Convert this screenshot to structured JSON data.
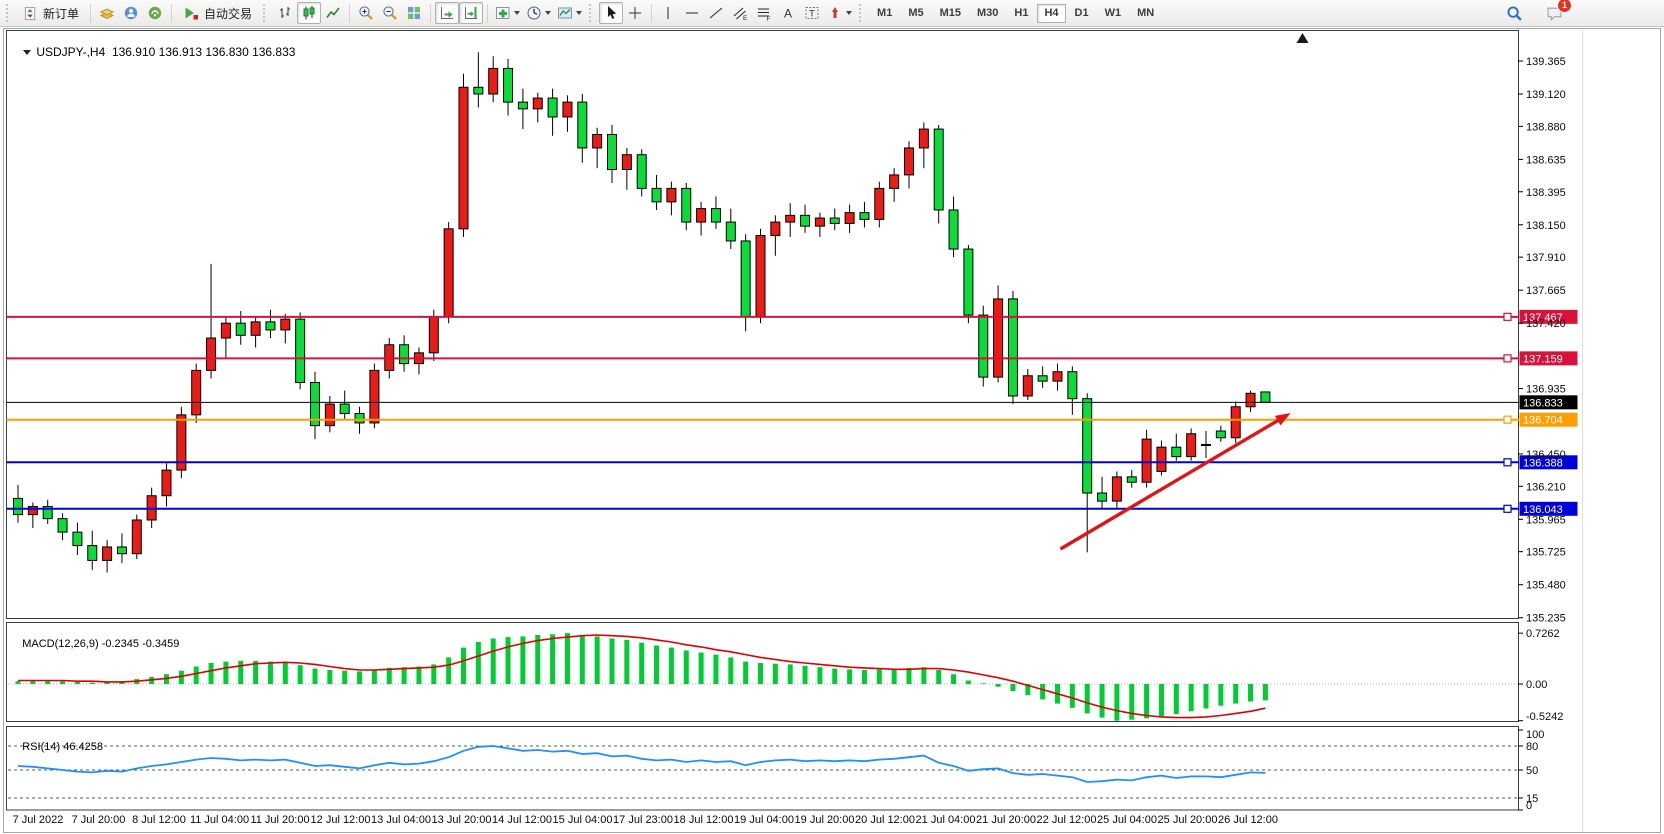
{
  "toolbar": {
    "new_order_label": "新订单",
    "auto_trading_label": "自动交易",
    "timeframes": [
      "M1",
      "M5",
      "M15",
      "M30",
      "H1",
      "H4",
      "D1",
      "W1",
      "MN"
    ],
    "active_timeframe": "H4",
    "notification_count": "1",
    "icons": [
      "new-order",
      "market-watch",
      "community",
      "news",
      "auto-trading",
      "bar-chart",
      "candlestick-chart",
      "line-chart",
      "zoom-in",
      "zoom-out",
      "tile-windows",
      "auto-scroll",
      "chart-shift",
      "indicators",
      "periods",
      "templates",
      "cursor",
      "crosshair",
      "vertical-line",
      "horizontal-line",
      "trendline",
      "equidistant-channel",
      "fibonacci",
      "text",
      "text-label",
      "arrows",
      "search",
      "chat"
    ]
  },
  "chart": {
    "symbol_label": "USDJPY-,H4",
    "ohlc_label": "136.910 136.913 136.830 136.833"
  },
  "indicators": {
    "macd": {
      "label": "MACD(12,26,9)",
      "values": "-0.2345 -0.3459",
      "axis_labels": [
        "0.7262",
        "0.00",
        "-0.5242"
      ]
    },
    "rsi": {
      "label": "RSI(14)",
      "value": "46.4258",
      "axis_labels": [
        "100",
        "80",
        "50",
        "15",
        "0"
      ],
      "levels": [
        80,
        50,
        15
      ]
    }
  },
  "chart_data": {
    "type": "candlestick",
    "symbol": "USDJPY-",
    "timeframe": "H4",
    "ylim": [
      135.235,
      139.365
    ],
    "price_ticks": [
      "139.365",
      "139.120",
      "138.880",
      "138.635",
      "138.395",
      "138.150",
      "137.910",
      "137.665",
      "137.420",
      "136.935",
      "136.450",
      "136.210",
      "135.965",
      "135.725",
      "135.480",
      "135.235"
    ],
    "hlines": [
      {
        "price": 137.467,
        "color": "#d9123b",
        "width": 2,
        "kind": "resistance"
      },
      {
        "price": 137.159,
        "color": "#d9123b",
        "width": 2,
        "kind": "resistance"
      },
      {
        "price": 136.833,
        "color": "#000000",
        "width": 1,
        "kind": "current-price"
      },
      {
        "price": 136.704,
        "color": "#ff9e00",
        "width": 2,
        "kind": "pivot"
      },
      {
        "price": 136.388,
        "color": "#0000dd",
        "width": 2,
        "kind": "support"
      },
      {
        "price": 136.043,
        "color": "#0000dd",
        "width": 2,
        "kind": "support"
      }
    ],
    "up_color": "#ea1c17",
    "down_color": "#0cdb3a",
    "candles": [
      [
        136.12,
        136.22,
        135.94,
        136.0
      ],
      [
        136.0,
        136.09,
        135.9,
        136.06
      ],
      [
        136.06,
        136.11,
        135.93,
        135.97
      ],
      [
        135.97,
        136.01,
        135.81,
        135.87
      ],
      [
        135.87,
        135.94,
        135.7,
        135.77
      ],
      [
        135.77,
        135.88,
        135.59,
        135.66
      ],
      [
        135.66,
        135.81,
        135.57,
        135.76
      ],
      [
        135.76,
        135.86,
        135.64,
        135.71
      ],
      [
        135.71,
        136.0,
        135.67,
        135.96
      ],
      [
        135.96,
        136.2,
        135.9,
        136.14
      ],
      [
        136.14,
        136.38,
        136.06,
        136.33
      ],
      [
        136.33,
        136.8,
        136.27,
        136.74
      ],
      [
        136.74,
        137.12,
        136.68,
        137.07
      ],
      [
        137.07,
        137.86,
        137.01,
        137.31
      ],
      [
        137.31,
        137.47,
        137.16,
        137.42
      ],
      [
        137.42,
        137.51,
        137.26,
        137.33
      ],
      [
        137.33,
        137.46,
        137.24,
        137.43
      ],
      [
        137.43,
        137.52,
        137.31,
        137.37
      ],
      [
        137.37,
        137.49,
        137.27,
        137.45
      ],
      [
        137.45,
        137.5,
        136.93,
        136.98
      ],
      [
        136.98,
        137.06,
        136.56,
        136.66
      ],
      [
        136.66,
        136.88,
        136.61,
        136.82
      ],
      [
        136.82,
        136.92,
        136.7,
        136.75
      ],
      [
        136.75,
        136.8,
        136.6,
        136.68
      ],
      [
        136.68,
        137.12,
        136.64,
        137.07
      ],
      [
        137.07,
        137.31,
        137.01,
        137.26
      ],
      [
        137.26,
        137.33,
        137.06,
        137.12
      ],
      [
        137.12,
        137.24,
        137.04,
        137.2
      ],
      [
        137.2,
        137.52,
        137.14,
        137.47
      ],
      [
        137.47,
        138.17,
        137.42,
        138.12
      ],
      [
        138.12,
        139.27,
        138.06,
        139.17
      ],
      [
        139.17,
        139.43,
        139.02,
        139.12
      ],
      [
        139.12,
        139.4,
        139.06,
        139.31
      ],
      [
        139.31,
        139.38,
        138.96,
        139.06
      ],
      [
        139.06,
        139.16,
        138.86,
        139.01
      ],
      [
        139.01,
        139.13,
        138.91,
        139.09
      ],
      [
        139.09,
        139.16,
        138.81,
        138.95
      ],
      [
        138.95,
        139.11,
        138.84,
        139.06
      ],
      [
        139.06,
        139.12,
        138.61,
        138.72
      ],
      [
        138.72,
        138.87,
        138.57,
        138.82
      ],
      [
        138.82,
        138.89,
        138.46,
        138.56
      ],
      [
        138.56,
        138.72,
        138.41,
        138.67
      ],
      [
        138.67,
        138.71,
        138.36,
        138.42
      ],
      [
        138.42,
        138.52,
        138.26,
        138.32
      ],
      [
        138.32,
        138.47,
        138.22,
        138.42
      ],
      [
        138.42,
        138.46,
        138.11,
        138.17
      ],
      [
        138.17,
        138.32,
        138.07,
        138.27
      ],
      [
        138.27,
        138.36,
        138.12,
        138.17
      ],
      [
        138.17,
        138.27,
        137.97,
        138.03
      ],
      [
        138.03,
        138.08,
        137.36,
        137.47
      ],
      [
        137.47,
        138.12,
        137.42,
        138.07
      ],
      [
        138.07,
        138.22,
        137.92,
        138.17
      ],
      [
        138.17,
        138.31,
        138.06,
        138.22
      ],
      [
        138.22,
        138.3,
        138.09,
        138.14
      ],
      [
        138.14,
        138.24,
        138.06,
        138.2
      ],
      [
        138.2,
        138.27,
        138.11,
        138.16
      ],
      [
        138.16,
        138.3,
        138.09,
        138.24
      ],
      [
        138.24,
        138.32,
        138.13,
        138.19
      ],
      [
        138.19,
        138.47,
        138.13,
        138.42
      ],
      [
        138.42,
        138.57,
        138.32,
        138.52
      ],
      [
        138.52,
        138.77,
        138.42,
        138.72
      ],
      [
        138.72,
        138.91,
        138.57,
        138.86
      ],
      [
        138.86,
        138.89,
        138.16,
        138.26
      ],
      [
        138.26,
        138.36,
        137.91,
        137.97
      ],
      [
        137.97,
        138.0,
        137.42,
        137.48
      ],
      [
        137.48,
        137.55,
        136.95,
        137.02
      ],
      [
        137.02,
        137.7,
        136.98,
        137.6
      ],
      [
        137.6,
        137.66,
        136.82,
        136.88
      ],
      [
        136.88,
        137.08,
        136.85,
        137.03
      ],
      [
        137.03,
        137.1,
        136.94,
        136.99
      ],
      [
        136.99,
        137.12,
        136.92,
        137.06
      ],
      [
        137.06,
        137.1,
        136.74,
        136.86
      ],
      [
        136.86,
        136.9,
        135.72,
        136.16
      ],
      [
        136.16,
        136.28,
        136.04,
        136.1
      ],
      [
        136.1,
        136.32,
        136.05,
        136.28
      ],
      [
        136.28,
        136.33,
        136.2,
        136.24
      ],
      [
        136.24,
        136.63,
        136.2,
        136.56
      ],
      [
        136.32,
        136.55,
        136.29,
        136.5
      ],
      [
        136.5,
        136.6,
        136.4,
        136.43
      ],
      [
        136.43,
        136.64,
        136.4,
        136.6
      ],
      [
        136.52,
        136.62,
        136.42,
        136.52
      ],
      [
        136.62,
        136.66,
        136.54,
        136.57
      ],
      [
        136.57,
        136.84,
        136.53,
        136.8
      ],
      [
        136.8,
        136.92,
        136.76,
        136.9
      ],
      [
        136.91,
        136.913,
        136.83,
        136.833
      ]
    ],
    "macd": {
      "hist_color": "#00cc33",
      "signal_color": "#e00000",
      "histogram": [
        0.04,
        0.05,
        0.05,
        0.04,
        0.03,
        0.02,
        0.03,
        0.04,
        0.07,
        0.1,
        0.14,
        0.19,
        0.25,
        0.3,
        0.32,
        0.33,
        0.33,
        0.32,
        0.31,
        0.27,
        0.22,
        0.2,
        0.19,
        0.18,
        0.2,
        0.23,
        0.24,
        0.25,
        0.28,
        0.38,
        0.52,
        0.6,
        0.65,
        0.67,
        0.68,
        0.7,
        0.71,
        0.726,
        0.7,
        0.68,
        0.65,
        0.63,
        0.59,
        0.55,
        0.52,
        0.48,
        0.45,
        0.42,
        0.38,
        0.32,
        0.3,
        0.29,
        0.28,
        0.26,
        0.24,
        0.22,
        0.21,
        0.2,
        0.21,
        0.22,
        0.23,
        0.24,
        0.2,
        0.14,
        0.05,
        0.01,
        -0.04,
        -0.1,
        -0.16,
        -0.22,
        -0.28,
        -0.34,
        -0.42,
        -0.48,
        -0.524,
        -0.51,
        -0.49,
        -0.46,
        -0.43,
        -0.39,
        -0.35,
        -0.31,
        -0.28,
        -0.25,
        -0.2345
      ],
      "signal": [
        0.05,
        0.05,
        0.05,
        0.05,
        0.04,
        0.04,
        0.03,
        0.03,
        0.04,
        0.06,
        0.08,
        0.11,
        0.15,
        0.19,
        0.23,
        0.26,
        0.29,
        0.3,
        0.31,
        0.3,
        0.28,
        0.25,
        0.22,
        0.2,
        0.2,
        0.21,
        0.22,
        0.23,
        0.24,
        0.27,
        0.33,
        0.4,
        0.47,
        0.53,
        0.58,
        0.62,
        0.65,
        0.67,
        0.69,
        0.7,
        0.69,
        0.68,
        0.66,
        0.63,
        0.6,
        0.56,
        0.53,
        0.49,
        0.46,
        0.42,
        0.38,
        0.35,
        0.32,
        0.3,
        0.28,
        0.26,
        0.24,
        0.23,
        0.22,
        0.21,
        0.21,
        0.22,
        0.22,
        0.2,
        0.17,
        0.13,
        0.09,
        0.04,
        -0.02,
        -0.08,
        -0.14,
        -0.2,
        -0.27,
        -0.33,
        -0.38,
        -0.42,
        -0.45,
        -0.47,
        -0.48,
        -0.48,
        -0.47,
        -0.45,
        -0.42,
        -0.39,
        -0.3459
      ]
    },
    "rsi": {
      "color": "#1e90ff",
      "values": [
        55,
        54,
        52,
        50,
        48,
        47,
        49,
        48,
        52,
        55,
        57,
        60,
        63,
        65,
        64,
        62,
        63,
        62,
        63,
        59,
        55,
        56,
        54,
        52,
        56,
        59,
        57,
        58,
        61,
        66,
        74,
        79,
        80,
        77,
        74,
        75,
        73,
        74,
        70,
        71,
        67,
        68,
        64,
        62,
        63,
        60,
        62,
        60,
        61,
        56,
        60,
        62,
        63,
        61,
        62,
        61,
        62,
        61,
        63,
        64,
        66,
        68,
        59,
        55,
        49,
        51,
        52,
        46,
        44,
        45,
        43,
        41,
        35,
        36,
        38,
        37,
        41,
        43,
        40,
        42,
        42,
        41,
        44,
        47,
        46.43
      ]
    },
    "time_labels": [
      "7 Jul 2022",
      "7 Jul 20:00",
      "8 Jul 12:00",
      "11 Jul 04:00",
      "11 Jul 20:00",
      "12 Jul 12:00",
      "13 Jul 04:00",
      "13 Jul 20:00",
      "14 Jul 12:00",
      "15 Jul 04:00",
      "17 Jul 23:00",
      "18 Jul 12:00",
      "19 Jul 04:00",
      "19 Jul 20:00",
      "20 Jul 12:00",
      "21 Jul 04:00",
      "21 Jul 20:00",
      "22 Jul 12:00",
      "25 Jul 04:00",
      "25 Jul 20:00",
      "26 Jul 12:00"
    ],
    "trend_arrow": {
      "from_bar": 70.2,
      "from_price": 135.745,
      "to_bar": 85.7,
      "to_price": 136.754,
      "color": "#e01414"
    },
    "shift_marker_bar": 86.5
  }
}
